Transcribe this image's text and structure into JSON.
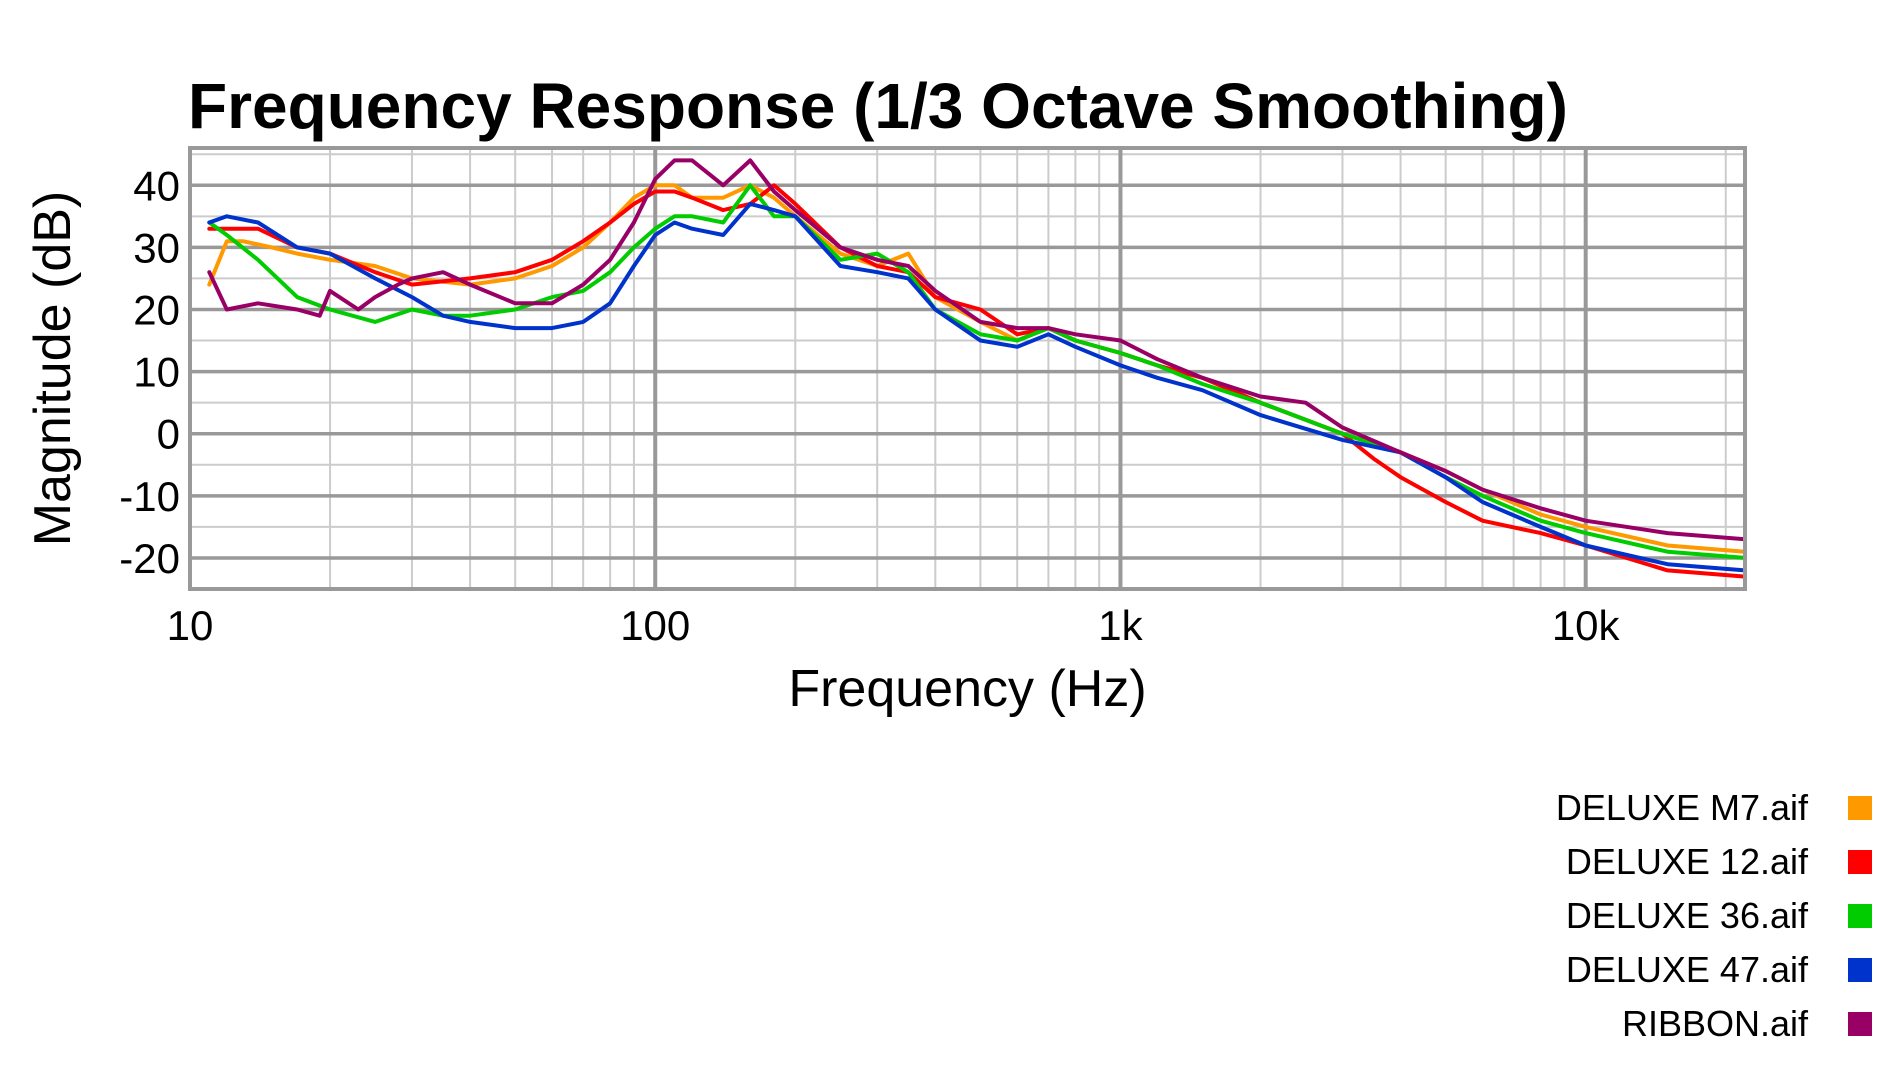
{
  "chart_data": {
    "type": "line",
    "title": "Frequency Response (1/3 Octave Smoothing)",
    "xlabel": "Frequency (Hz)",
    "ylabel": "Magnitude (dB)",
    "x_scale": "log",
    "xlim": [
      10,
      22000
    ],
    "ylim": [
      -25,
      46
    ],
    "x_ticks": [
      10,
      100,
      1000,
      10000
    ],
    "x_tick_labels": [
      "10",
      "100",
      "1k",
      "10k"
    ],
    "y_ticks": [
      40,
      30,
      20,
      10,
      0,
      -10,
      -20
    ],
    "y_tick_labels": [
      "40",
      "30",
      "20",
      "10",
      "0",
      "-10",
      "-20"
    ],
    "grid": true,
    "legend_position": "bottom-right",
    "series": [
      {
        "name": "DELUXE M7.aif",
        "color": "#FF9900",
        "x": [
          11,
          12,
          13,
          15,
          17,
          20,
          25,
          30,
          40,
          50,
          60,
          70,
          80,
          90,
          100,
          110,
          120,
          140,
          160,
          180,
          200,
          250,
          300,
          350,
          400,
          500,
          600,
          700,
          800,
          1000,
          1200,
          1500,
          2000,
          3000,
          4000,
          5000,
          6000,
          8000,
          10000,
          15000,
          22000
        ],
        "values": [
          24,
          31,
          31,
          30,
          29,
          28,
          27,
          25,
          24,
          25,
          27,
          30,
          34,
          38,
          40,
          40,
          38,
          38,
          40,
          38,
          35,
          29,
          27,
          29,
          22,
          18,
          15,
          17,
          15,
          13,
          11,
          9,
          5,
          0,
          -3,
          -6,
          -9,
          -13,
          -15,
          -18,
          -19
        ]
      },
      {
        "name": "DELUXE 12.aif",
        "color": "#FF0000",
        "x": [
          11,
          12,
          14,
          17,
          20,
          25,
          30,
          40,
          50,
          60,
          70,
          80,
          90,
          100,
          110,
          120,
          140,
          160,
          180,
          200,
          250,
          300,
          350,
          400,
          500,
          600,
          700,
          800,
          1000,
          1200,
          1500,
          2000,
          3000,
          3500,
          4000,
          5000,
          6000,
          8000,
          10000,
          15000,
          22000
        ],
        "values": [
          33,
          33,
          33,
          30,
          29,
          26,
          24,
          25,
          26,
          28,
          31,
          34,
          37,
          39,
          39,
          38,
          36,
          37,
          40,
          37,
          30,
          27,
          26,
          22,
          20,
          16,
          17,
          15,
          13,
          11,
          9,
          5,
          0,
          -4,
          -7,
          -11,
          -14,
          -16,
          -18,
          -22,
          -23
        ]
      },
      {
        "name": "DELUXE 36.aif",
        "color": "#00CC00",
        "x": [
          11,
          12,
          14,
          17,
          20,
          25,
          30,
          35,
          40,
          50,
          60,
          70,
          80,
          90,
          100,
          110,
          120,
          140,
          160,
          180,
          200,
          250,
          300,
          350,
          400,
          500,
          600,
          700,
          800,
          1000,
          1200,
          1500,
          2000,
          3000,
          4000,
          5000,
          6000,
          8000,
          10000,
          15000,
          22000
        ],
        "values": [
          34,
          32,
          28,
          22,
          20,
          18,
          20,
          19,
          19,
          20,
          22,
          23,
          26,
          30,
          33,
          35,
          35,
          34,
          40,
          35,
          35,
          28,
          29,
          26,
          20,
          16,
          15,
          17,
          15,
          13,
          11,
          8,
          5,
          0,
          -3,
          -7,
          -10,
          -14,
          -16,
          -19,
          -20
        ]
      },
      {
        "name": "DELUXE 47.aif",
        "color": "#0033CC",
        "x": [
          11,
          12,
          14,
          17,
          20,
          25,
          30,
          35,
          40,
          50,
          60,
          70,
          80,
          90,
          100,
          110,
          120,
          140,
          160,
          180,
          200,
          250,
          300,
          350,
          400,
          500,
          600,
          700,
          800,
          1000,
          1200,
          1500,
          2000,
          3000,
          4000,
          5000,
          6000,
          8000,
          10000,
          15000,
          22000
        ],
        "values": [
          34,
          35,
          34,
          30,
          29,
          25,
          22,
          19,
          18,
          17,
          17,
          18,
          21,
          27,
          32,
          34,
          33,
          32,
          37,
          36,
          35,
          27,
          26,
          25,
          20,
          15,
          14,
          16,
          14,
          11,
          9,
          7,
          3,
          -1,
          -3,
          -7,
          -11,
          -15,
          -18,
          -21,
          -22
        ]
      },
      {
        "name": "RIBBON.aif",
        "color": "#990066",
        "x": [
          11,
          12,
          14,
          17,
          19,
          20,
          23,
          25,
          28,
          30,
          35,
          40,
          50,
          60,
          70,
          80,
          90,
          100,
          110,
          120,
          140,
          160,
          180,
          200,
          250,
          300,
          350,
          400,
          500,
          600,
          700,
          800,
          1000,
          1200,
          1500,
          2000,
          2500,
          3000,
          4000,
          5000,
          6000,
          8000,
          10000,
          15000,
          22000
        ],
        "values": [
          26,
          20,
          21,
          20,
          19,
          23,
          20,
          22,
          24,
          25,
          26,
          24,
          21,
          21,
          24,
          28,
          34,
          41,
          44,
          44,
          40,
          44,
          39,
          36,
          30,
          28,
          27,
          23,
          18,
          17,
          17,
          16,
          15,
          12,
          9,
          6,
          5,
          1,
          -3,
          -6,
          -9,
          -12,
          -14,
          -16,
          -17
        ]
      }
    ]
  }
}
